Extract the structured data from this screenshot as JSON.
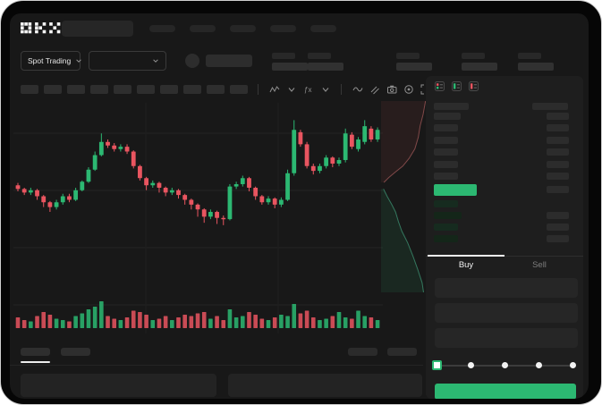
{
  "colors": {
    "green": "#2cb872",
    "red": "#e95560",
    "bid_row": "#162b1f",
    "placeholder": "#2b2b2b",
    "panel_bg": "#1e1e1e",
    "screen_bg": "#181818"
  },
  "topbar": {
    "logo_text": "OKX",
    "nav_placeholder_count": 5
  },
  "market_bar": {
    "pair_selector_label": "Spot Trading",
    "stat_pair_positions": [
      293,
      333,
      432,
      505,
      568
    ]
  },
  "toolbar": {
    "timeframe_slot_count": 10,
    "icons": [
      "chart-type",
      "chevron-down",
      "fx-indicators",
      "chevron-down",
      "divider",
      "line-wave",
      "draw",
      "camera",
      "settings",
      "expand"
    ]
  },
  "chart_data": {
    "type": "candlestick",
    "title": "",
    "price_scale": [
      0,
      100
    ],
    "grid": "horizontal-faint",
    "candles": [
      [
        42,
        39,
        37,
        44
      ],
      [
        39,
        36,
        34,
        40
      ],
      [
        36,
        38,
        34,
        40
      ],
      [
        38,
        33,
        30,
        39
      ],
      [
        33,
        28,
        24,
        34
      ],
      [
        28,
        24,
        20,
        29
      ],
      [
        24,
        28,
        22,
        30
      ],
      [
        28,
        33,
        26,
        35
      ],
      [
        33,
        30,
        28,
        35
      ],
      [
        30,
        38,
        29,
        40
      ],
      [
        38,
        45,
        37,
        46
      ],
      [
        45,
        55,
        44,
        57
      ],
      [
        55,
        67,
        54,
        70
      ],
      [
        67,
        78,
        66,
        85
      ],
      [
        78,
        75,
        73,
        80
      ],
      [
        75,
        72,
        70,
        77
      ],
      [
        72,
        74,
        70,
        76
      ],
      [
        74,
        70,
        68,
        76
      ],
      [
        70,
        58,
        56,
        71
      ],
      [
        58,
        48,
        46,
        59
      ],
      [
        48,
        42,
        38,
        49
      ],
      [
        42,
        44,
        40,
        46
      ],
      [
        44,
        40,
        36,
        45
      ],
      [
        40,
        36,
        33,
        41
      ],
      [
        36,
        38,
        34,
        40
      ],
      [
        38,
        34,
        31,
        39
      ],
      [
        34,
        30,
        26,
        35
      ],
      [
        30,
        26,
        22,
        31
      ],
      [
        26,
        22,
        16,
        27
      ],
      [
        22,
        16,
        11,
        23
      ],
      [
        16,
        20,
        14,
        22
      ],
      [
        20,
        15,
        10,
        21
      ],
      [
        15,
        14,
        9,
        17
      ],
      [
        14,
        41,
        13,
        43
      ],
      [
        41,
        43,
        39,
        45
      ],
      [
        43,
        48,
        41,
        50
      ],
      [
        48,
        40,
        37,
        49
      ],
      [
        40,
        33,
        30,
        41
      ],
      [
        33,
        28,
        26,
        34
      ],
      [
        28,
        31,
        26,
        33
      ],
      [
        31,
        26,
        23,
        32
      ],
      [
        26,
        30,
        24,
        32
      ],
      [
        30,
        52,
        29,
        55
      ],
      [
        52,
        88,
        50,
        96
      ],
      [
        86,
        76,
        74,
        88
      ],
      [
        76,
        58,
        56,
        78
      ],
      [
        58,
        54,
        51,
        60
      ],
      [
        54,
        58,
        52,
        60
      ],
      [
        58,
        65,
        56,
        67
      ],
      [
        65,
        60,
        57,
        66
      ],
      [
        60,
        63,
        58,
        65
      ],
      [
        63,
        85,
        61,
        89
      ],
      [
        84,
        74,
        72,
        86
      ],
      [
        72,
        80,
        70,
        82
      ],
      [
        78,
        91,
        76,
        96
      ],
      [
        89,
        80,
        78,
        91
      ],
      [
        80,
        88,
        78,
        90
      ]
    ],
    "candle_format": "[open,close,low,high]",
    "volumes": [
      8,
      6,
      5,
      9,
      12,
      10,
      7,
      6,
      5,
      9,
      11,
      14,
      16,
      20,
      9,
      7,
      6,
      8,
      13,
      12,
      10,
      6,
      7,
      9,
      6,
      8,
      10,
      9,
      11,
      12,
      7,
      9,
      6,
      14,
      8,
      9,
      12,
      10,
      7,
      6,
      8,
      10,
      9,
      18,
      11,
      13,
      8,
      6,
      7,
      9,
      12,
      8,
      7,
      13,
      9,
      8,
      6
    ],
    "depth": {
      "orientation": "vertical",
      "asks": [
        [
          0.92,
          0.0
        ],
        [
          0.87,
          0.07
        ],
        [
          0.81,
          0.13
        ],
        [
          0.77,
          0.19
        ],
        [
          0.7,
          0.25
        ],
        [
          0.58,
          0.3
        ],
        [
          0.45,
          0.34
        ],
        [
          0.3,
          0.37
        ],
        [
          0.16,
          0.4
        ],
        [
          0.06,
          0.425
        ]
      ],
      "bids": [
        [
          0.05,
          0.46
        ],
        [
          0.13,
          0.5
        ],
        [
          0.22,
          0.54
        ],
        [
          0.3,
          0.58
        ],
        [
          0.36,
          0.63
        ],
        [
          0.43,
          0.68
        ],
        [
          0.55,
          0.74
        ],
        [
          0.66,
          0.81
        ],
        [
          0.76,
          0.88
        ],
        [
          0.85,
          0.95
        ],
        [
          0.88,
          1.0
        ]
      ]
    }
  },
  "order_book": {
    "view_icons": [
      "book-all-icon",
      "book-bids-icon",
      "book-asks-icon"
    ],
    "ask_row_count": 6,
    "bid_row_count": 4,
    "price_highlight_color": "#2cb872",
    "bid_rows_with_amount": [
      1,
      2,
      3
    ]
  },
  "trade_panel": {
    "tabs": [
      {
        "label": "Buy",
        "active": true
      },
      {
        "label": "Sell",
        "active": false
      }
    ],
    "input_count": 3,
    "slider": {
      "steps": 5,
      "active_step": 0
    },
    "submit_color": "#2cb872"
  },
  "bottom_panel": {
    "tab_count": 2,
    "right_action_count": 2,
    "panel_count": 2
  }
}
